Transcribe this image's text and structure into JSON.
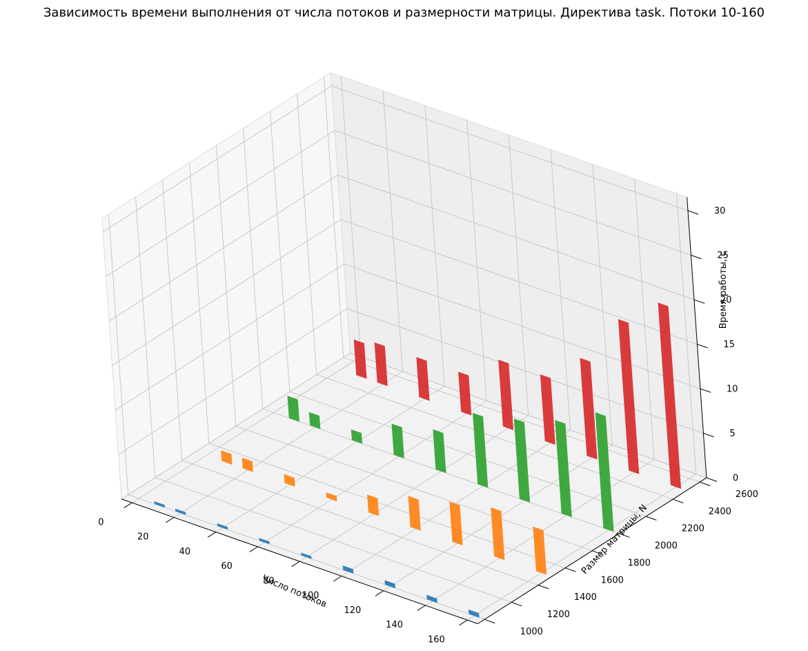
{
  "chart_data": {
    "type": "bar3d",
    "title": "Зависимость времени выполнения от числа потоков и размерности матрицы. Директива task. Потоки 10-160",
    "xlabel": "Число потоков",
    "ylabel": "Размер матрицы, N",
    "zlabel": "Время работы, с",
    "xlim": [
      0,
      160
    ],
    "ylim": [
      1000,
      2600
    ],
    "zlim": [
      0,
      30
    ],
    "x_ticks": [
      "0",
      "20",
      "40",
      "60",
      "80",
      "100",
      "120",
      "140",
      "160"
    ],
    "y_ticks": [
      "1000",
      "1200",
      "1400",
      "1600",
      "1800",
      "2000",
      "2200",
      "2400",
      "2600"
    ],
    "z_ticks": [
      "0",
      "5",
      "10",
      "15",
      "20",
      "25",
      "30"
    ],
    "x": [
      10,
      20,
      40,
      60,
      80,
      100,
      120,
      140,
      160
    ],
    "series": [
      {
        "y": 1000,
        "color": "#1f77b4",
        "values": [
          0.3,
          0.3,
          0.3,
          0.3,
          0.3,
          0.5,
          0.5,
          0.5,
          0.5
        ]
      },
      {
        "y": 1500,
        "color": "#ff7f0e",
        "values": [
          1.2,
          1.2,
          1.0,
          0.6,
          2.0,
          3.5,
          4.5,
          5.5,
          5.0
        ]
      },
      {
        "y": 2000,
        "color": "#2ca02c",
        "values": [
          2.5,
          1.5,
          1.2,
          3.5,
          4.5,
          8.0,
          9.0,
          10.5,
          13.0
        ]
      },
      {
        "y": 2500,
        "color": "#d62728",
        "values": [
          4.0,
          4.5,
          4.5,
          4.5,
          7.5,
          7.5,
          11.0,
          17.0,
          20.5
        ]
      }
    ]
  }
}
